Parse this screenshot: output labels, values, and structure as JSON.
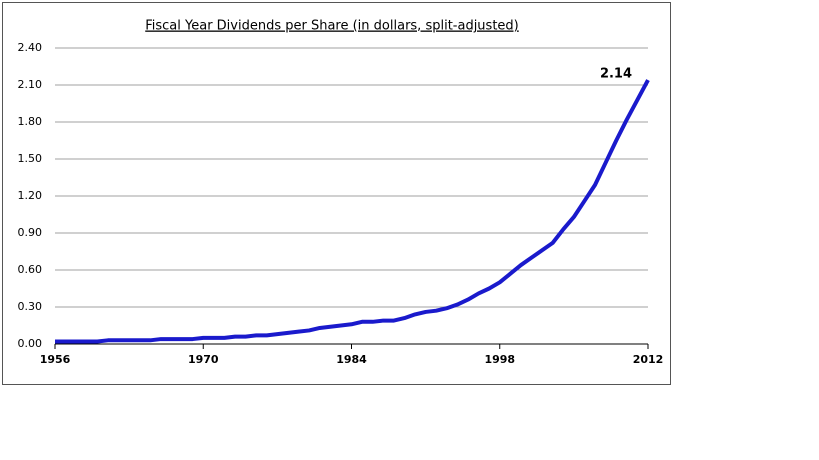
{
  "chart_data": {
    "type": "line",
    "title": "Fiscal Year Dividends per Share (in dollars, split-adjusted)",
    "x": [
      1956,
      1957,
      1958,
      1959,
      1960,
      1961,
      1962,
      1963,
      1964,
      1965,
      1966,
      1967,
      1968,
      1969,
      1970,
      1971,
      1972,
      1973,
      1974,
      1975,
      1976,
      1977,
      1978,
      1979,
      1980,
      1981,
      1982,
      1983,
      1984,
      1985,
      1986,
      1987,
      1988,
      1989,
      1990,
      1991,
      1992,
      1993,
      1994,
      1995,
      1996,
      1997,
      1998,
      1999,
      2000,
      2001,
      2002,
      2003,
      2004,
      2005,
      2006,
      2007,
      2008,
      2009,
      2010,
      2011,
      2012
    ],
    "series": [
      {
        "color": "#1a1acc",
        "values": [
          0.02,
          0.02,
          0.02,
          0.02,
          0.02,
          0.03,
          0.03,
          0.03,
          0.03,
          0.03,
          0.04,
          0.04,
          0.04,
          0.04,
          0.05,
          0.05,
          0.05,
          0.06,
          0.06,
          0.07,
          0.07,
          0.08,
          0.09,
          0.1,
          0.11,
          0.13,
          0.14,
          0.15,
          0.16,
          0.18,
          0.18,
          0.19,
          0.19,
          0.21,
          0.24,
          0.26,
          0.27,
          0.29,
          0.32,
          0.36,
          0.41,
          0.45,
          0.5,
          0.57,
          0.64,
          0.7,
          0.76,
          0.82,
          0.93,
          1.03,
          1.16,
          1.29,
          1.47,
          1.65,
          1.82,
          1.98,
          2.14
        ]
      }
    ],
    "xlim": [
      1956,
      2012
    ],
    "xticks": [
      1956,
      1970,
      1984,
      1998,
      2012
    ],
    "ylim": [
      0,
      2.4
    ],
    "yticks": [
      {
        "value": 0,
        "label": "0.00"
      },
      {
        "value": 0.3,
        "label": "0.30"
      },
      {
        "value": 0.6,
        "label": "0.60"
      },
      {
        "value": 0.9,
        "label": "0.90"
      },
      {
        "value": 1.2,
        "label": "1.20"
      },
      {
        "value": 1.5,
        "label": "1.50"
      },
      {
        "value": 1.8,
        "label": "1.80"
      },
      {
        "value": 2.1,
        "label": "2.10"
      },
      {
        "value": 2.4,
        "label": "2.40"
      }
    ],
    "grid": true
  }
}
